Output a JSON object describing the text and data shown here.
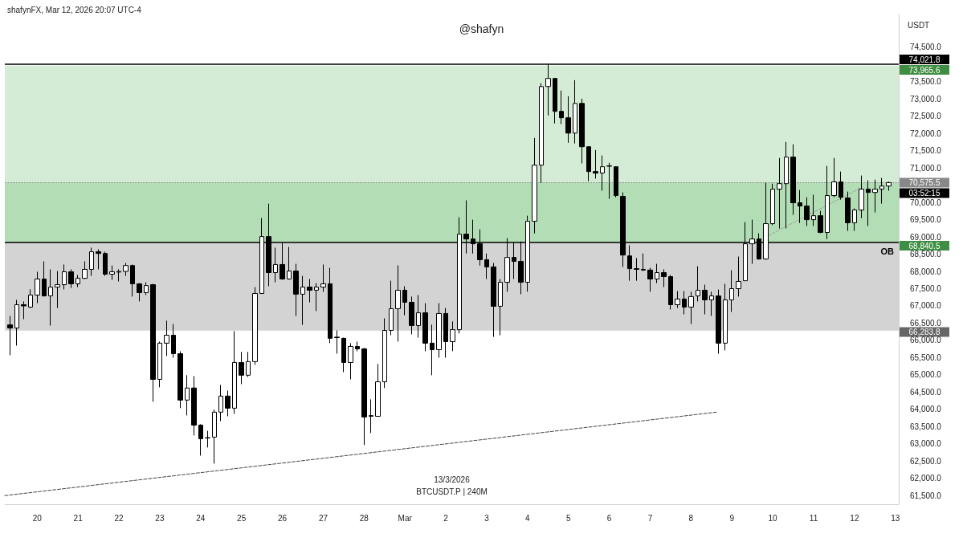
{
  "chart_data": {
    "type": "candlestick",
    "title": "@shafyn",
    "subtitle": "shafynFX, Mar 12, 2026 20:07 UTC-4",
    "ylabel": "USDT",
    "x": [
      "2026-02-19T08:00",
      "2026-02-19T12:00",
      "2026-02-19T16:00",
      "2026-02-19T20:00",
      "2026-02-20T00:00",
      "2026-02-20T04:00",
      "2026-02-20T08:00",
      "2026-02-20T12:00",
      "2026-02-20T16:00",
      "2026-02-20T20:00",
      "2026-02-21T00:00",
      "2026-02-21T04:00",
      "2026-02-21T08:00",
      "2026-02-21T12:00",
      "2026-02-21T16:00",
      "2026-02-21T20:00",
      "2026-02-22T00:00",
      "2026-02-22T04:00",
      "2026-02-22T08:00",
      "2026-02-22T12:00",
      "2026-02-22T16:00",
      "2026-02-22T20:00",
      "2026-02-23T00:00",
      "2026-02-23T04:00",
      "2026-02-23T08:00",
      "2026-02-23T12:00",
      "2026-02-23T16:00",
      "2026-02-23T20:00",
      "2026-02-24T00:00",
      "2026-02-24T04:00",
      "2026-02-24T08:00",
      "2026-02-24T12:00",
      "2026-02-24T16:00",
      "2026-02-24T20:00",
      "2026-02-25T00:00",
      "2026-02-25T04:00",
      "2026-02-25T08:00",
      "2026-02-25T12:00",
      "2026-02-25T16:00",
      "2026-02-25T20:00",
      "2026-02-26T00:00",
      "2026-02-26T04:00",
      "2026-02-26T08:00",
      "2026-02-26T12:00",
      "2026-02-26T16:00",
      "2026-02-26T20:00",
      "2026-02-27T00:00",
      "2026-02-27T04:00",
      "2026-02-27T08:00",
      "2026-02-27T12:00",
      "2026-02-27T16:00",
      "2026-02-27T20:00",
      "2026-02-28T00:00",
      "2026-02-28T04:00",
      "2026-02-28T08:00",
      "2026-02-28T12:00",
      "2026-02-28T16:00",
      "2026-02-28T20:00",
      "2026-03-01T00:00",
      "2026-03-01T04:00",
      "2026-03-01T08:00",
      "2026-03-01T12:00",
      "2026-03-01T16:00",
      "2026-03-01T20:00",
      "2026-03-02T00:00",
      "2026-03-02T04:00",
      "2026-03-02T08:00",
      "2026-03-02T12:00",
      "2026-03-02T16:00",
      "2026-03-02T20:00",
      "2026-03-03T00:00",
      "2026-03-03T04:00",
      "2026-03-03T08:00",
      "2026-03-03T12:00",
      "2026-03-03T16:00",
      "2026-03-03T20:00",
      "2026-03-04T00:00",
      "2026-03-04T04:00",
      "2026-03-04T08:00",
      "2026-03-04T12:00",
      "2026-03-04T16:00",
      "2026-03-04T20:00",
      "2026-03-05T00:00",
      "2026-03-05T04:00",
      "2026-03-05T08:00",
      "2026-03-05T12:00",
      "2026-03-05T16:00",
      "2026-03-05T20:00",
      "2026-03-06T00:00",
      "2026-03-06T04:00",
      "2026-03-06T08:00",
      "2026-03-06T12:00",
      "2026-03-06T16:00",
      "2026-03-06T20:00",
      "2026-03-07T00:00",
      "2026-03-07T04:00",
      "2026-03-07T08:00",
      "2026-03-07T12:00",
      "2026-03-07T16:00",
      "2026-03-07T20:00",
      "2026-03-08T00:00",
      "2026-03-08T04:00",
      "2026-03-08T08:00",
      "2026-03-08T12:00",
      "2026-03-08T16:00",
      "2026-03-08T20:00",
      "2026-03-09T00:00",
      "2026-03-09T04:00",
      "2026-03-09T08:00",
      "2026-03-09T12:00",
      "2026-03-09T16:00",
      "2026-03-09T20:00",
      "2026-03-10T00:00",
      "2026-03-10T04:00",
      "2026-03-10T08:00",
      "2026-03-10T12:00",
      "2026-03-10T16:00",
      "2026-03-10T20:00",
      "2026-03-11T00:00",
      "2026-03-11T04:00",
      "2026-03-11T08:00",
      "2026-03-11T12:00",
      "2026-03-11T16:00",
      "2026-03-11T20:00",
      "2026-03-12T00:00",
      "2026-03-12T04:00",
      "2026-03-12T08:00",
      "2026-03-12T12:00",
      "2026-03-12T16:00",
      "2026-03-12T20:00"
    ],
    "ohlc": [
      [
        66450,
        66710,
        65570,
        66360
      ],
      [
        66360,
        67175,
        65850,
        67035
      ],
      [
        67035,
        67130,
        66615,
        67000
      ],
      [
        66965,
        67480,
        66940,
        67315
      ],
      [
        67315,
        67990,
        67080,
        67780
      ],
      [
        67780,
        68290,
        67270,
        67290
      ],
      [
        67290,
        68060,
        66430,
        67545
      ],
      [
        67545,
        68010,
        66940,
        67615
      ],
      [
        67615,
        68200,
        67480,
        67990
      ],
      [
        67990,
        68060,
        67520,
        67640
      ],
      [
        67640,
        67895,
        67545,
        67800
      ],
      [
        67800,
        68290,
        67780,
        68060
      ],
      [
        68060,
        68690,
        67870,
        68570
      ],
      [
        68570,
        68640,
        68060,
        68520
      ],
      [
        68520,
        68570,
        67870,
        67920
      ],
      [
        67920,
        68170,
        67755,
        67990
      ],
      [
        67980,
        68060,
        67710,
        68000
      ],
      [
        68000,
        68245,
        67870,
        68170
      ],
      [
        68170,
        68200,
        67270,
        67640
      ],
      [
        67640,
        67660,
        67130,
        67385
      ],
      [
        67385,
        67685,
        67315,
        67590
      ],
      [
        67615,
        67640,
        64220,
        64870
      ],
      [
        64870,
        65965,
        64640,
        65920
      ],
      [
        65920,
        66570,
        65545,
        66150
      ],
      [
        66150,
        66475,
        65500,
        65615
      ],
      [
        65615,
        65685,
        64035,
        64270
      ],
      [
        64270,
        64990,
        63825,
        64620
      ],
      [
        64620,
        64965,
        63245,
        63545
      ],
      [
        63545,
        63570,
        62660,
        63150
      ],
      [
        63170,
        63380,
        62895,
        63180
      ],
      [
        63195,
        63990,
        62430,
        63920
      ],
      [
        63920,
        64710,
        63660,
        64385
      ],
      [
        64385,
        64545,
        63800,
        64035
      ],
      [
        64035,
        66270,
        63870,
        65360
      ],
      [
        65360,
        65665,
        64730,
        64990
      ],
      [
        64990,
        65665,
        64940,
        65385
      ],
      [
        65385,
        67545,
        65290,
        67360
      ],
      [
        67360,
        69545,
        67360,
        69010
      ],
      [
        69010,
        69965,
        67570,
        67965
      ],
      [
        67965,
        68690,
        67685,
        68200
      ],
      [
        68200,
        68830,
        67760,
        67780
      ],
      [
        67780,
        68710,
        67760,
        68010
      ],
      [
        68010,
        68220,
        66710,
        67340
      ],
      [
        67340,
        67870,
        66450,
        67545
      ],
      [
        67545,
        67780,
        67105,
        67455
      ],
      [
        67455,
        67660,
        66850,
        67545
      ],
      [
        67545,
        68200,
        67410,
        67640
      ],
      [
        67640,
        68105,
        65920,
        66060
      ],
      [
        66080,
        66290,
        65615,
        66095
      ],
      [
        66060,
        66080,
        65080,
        65360
      ],
      [
        65360,
        65920,
        64870,
        65825
      ],
      [
        65825,
        65965,
        65685,
        65755
      ],
      [
        65755,
        65780,
        62965,
        63780
      ],
      [
        63800,
        64290,
        63315,
        63820
      ],
      [
        63800,
        65315,
        63800,
        64800
      ],
      [
        64800,
        66640,
        64620,
        66290
      ],
      [
        66290,
        67730,
        66150,
        66920
      ],
      [
        66920,
        68175,
        65965,
        67455
      ],
      [
        67455,
        67570,
        66730,
        67105
      ],
      [
        67105,
        67270,
        66175,
        66430
      ],
      [
        66430,
        67315,
        66080,
        66800
      ],
      [
        66800,
        67080,
        65685,
        65920
      ],
      [
        65920,
        66455,
        64990,
        65730
      ],
      [
        65730,
        67080,
        65500,
        66780
      ],
      [
        66780,
        66940,
        65500,
        65965
      ],
      [
        65965,
        66550,
        65690,
        66310
      ],
      [
        66310,
        69570,
        66200,
        69080
      ],
      [
        69080,
        70060,
        68520,
        68940
      ],
      [
        68940,
        69500,
        68520,
        68800
      ],
      [
        68800,
        69220,
        68170,
        68340
      ],
      [
        68340,
        68520,
        67780,
        68130
      ],
      [
        68130,
        68245,
        66100,
        66990
      ],
      [
        66990,
        67780,
        66150,
        67685
      ],
      [
        67685,
        68965,
        67410,
        68405
      ],
      [
        68405,
        68850,
        67780,
        68290
      ],
      [
        68290,
        68870,
        67340,
        67685
      ],
      [
        67685,
        69615,
        67410,
        69455
      ],
      [
        69455,
        71870,
        69105,
        71080
      ],
      [
        71080,
        73455,
        70570,
        73360
      ],
      [
        73360,
        74020,
        72520,
        73595
      ],
      [
        73595,
        73595,
        72290,
        72640
      ],
      [
        72640,
        73245,
        72270,
        72455
      ],
      [
        72455,
        73080,
        71730,
        72010
      ],
      [
        72010,
        73545,
        71710,
        72870
      ],
      [
        72870,
        73010,
        71130,
        71615
      ],
      [
        71615,
        71615,
        70615,
        70895
      ],
      [
        70895,
        71520,
        70690,
        70850
      ],
      [
        70850,
        71360,
        70340,
        71035
      ],
      [
        71050,
        71150,
        70105,
        71060
      ],
      [
        71035,
        71035,
        70150,
        70200
      ],
      [
        70175,
        70290,
        68130,
        68475
      ],
      [
        68450,
        68755,
        67730,
        68080
      ],
      [
        68080,
        68385,
        67730,
        68060
      ],
      [
        68060,
        68520,
        68010,
        68040
      ],
      [
        68040,
        68105,
        67410,
        67780
      ],
      [
        67780,
        68220,
        67660,
        67965
      ],
      [
        67965,
        68060,
        67545,
        67850
      ],
      [
        67850,
        67895,
        66895,
        67035
      ],
      [
        67035,
        67430,
        66940,
        67200
      ],
      [
        67200,
        67430,
        66755,
        66965
      ],
      [
        66965,
        67410,
        66475,
        67270
      ],
      [
        67290,
        68150,
        67130,
        67455
      ],
      [
        67455,
        67615,
        66755,
        67175
      ],
      [
        67175,
        67410,
        66710,
        67290
      ],
      [
        67290,
        67475,
        65615,
        65920
      ],
      [
        65920,
        67640,
        65710,
        67175
      ],
      [
        67175,
        68035,
        66825,
        67500
      ],
      [
        67500,
        68430,
        67270,
        67710
      ],
      [
        67730,
        69430,
        67730,
        68800
      ],
      [
        68800,
        69500,
        68220,
        68940
      ],
      [
        68940,
        69105,
        68340,
        68360
      ],
      [
        68360,
        70570,
        68340,
        69385
      ],
      [
        69385,
        70545,
        69340,
        70385
      ],
      [
        70385,
        71290,
        69245,
        70545
      ],
      [
        70545,
        71755,
        69245,
        71315
      ],
      [
        71315,
        71685,
        69640,
        69990
      ],
      [
        69990,
        70360,
        69405,
        69895
      ],
      [
        69895,
        70150,
        69315,
        69500
      ],
      [
        69500,
        70220,
        69315,
        69615
      ],
      [
        69615,
        69755,
        69105,
        69130
      ],
      [
        69130,
        71060,
        68940,
        70200
      ],
      [
        70200,
        71290,
        70150,
        70595
      ],
      [
        70595,
        70895,
        70080,
        70150
      ],
      [
        70130,
        70315,
        69175,
        69410
      ],
      [
        69410,
        69825,
        69175,
        69780
      ],
      [
        69780,
        70780,
        69545,
        70385
      ],
      [
        70385,
        70640,
        69315,
        70290
      ],
      [
        70290,
        70660,
        69710,
        70385
      ],
      [
        70385,
        70710,
        69965,
        70475
      ],
      [
        70475,
        70600,
        70340,
        70575.5
      ]
    ],
    "series": [
      {
        "type": "line",
        "x": [
          "2026-02-19T05:00",
          "2026-03-08T15:00"
        ],
        "values": [
          61500,
          63920
        ],
        "color": "#444444",
        "line_style": "dashed",
        "marker": "none"
      },
      {
        "type": "line",
        "x": [
          "2026-03-09T16:00",
          "2026-03-12T04:00"
        ],
        "values": [
          68900,
          70430
        ],
        "color": "#9aa89b",
        "line_style": "dashed",
        "marker": "none"
      }
    ],
    "bands": [
      {
        "axis": "y",
        "from": 68840.5,
        "to": 73965.6,
        "color": "#d4ecd5",
        "label": "73,965.6"
      },
      {
        "axis": "y",
        "from": 70575.5,
        "to": 68840.5,
        "color": "#b2ddb5",
        "label": "68,840.5"
      },
      {
        "axis": "y",
        "from": 68840.5,
        "to": 66283.8,
        "color": "#d3d3d3",
        "label": "66,283.8"
      }
    ],
    "ref_lines": [
      {
        "axis": "y",
        "value": 74021.8,
        "label": "74,021.8",
        "color": "#000000",
        "line_style": "solid"
      },
      {
        "axis": "y",
        "value": 70575.5,
        "label": "70,575.5",
        "color": "#888888",
        "line_style": "dotted"
      },
      {
        "axis": "y",
        "value": 68840.5,
        "label": "OB",
        "color": "#000000",
        "line_style": "solid"
      }
    ],
    "annotations": [
      "03:52:15",
      "13/3/2026",
      "BTCUSDT.P | 240M"
    ],
    "xlim": [
      "2026-02-19T05:00",
      "2026-03-13T02:00"
    ],
    "xticks": [
      {
        "value": "2026-02-20",
        "label": "20"
      },
      {
        "value": "2026-02-21",
        "label": "21"
      },
      {
        "value": "2026-02-22",
        "label": "22"
      },
      {
        "value": "2026-02-23",
        "label": "23"
      },
      {
        "value": "2026-02-24",
        "label": "24"
      },
      {
        "value": "2026-02-25",
        "label": "25"
      },
      {
        "value": "2026-02-26",
        "label": "26"
      },
      {
        "value": "2026-02-27",
        "label": "27"
      },
      {
        "value": "2026-02-28",
        "label": "28"
      },
      {
        "value": "2026-03-01",
        "label": "Mar"
      },
      {
        "value": "2026-03-02",
        "label": "2"
      },
      {
        "value": "2026-03-03",
        "label": "3"
      },
      {
        "value": "2026-03-04",
        "label": "4"
      },
      {
        "value": "2026-03-05",
        "label": "5"
      },
      {
        "value": "2026-03-06",
        "label": "6"
      },
      {
        "value": "2026-03-07",
        "label": "7"
      },
      {
        "value": "2026-03-08",
        "label": "8"
      },
      {
        "value": "2026-03-09",
        "label": "9"
      },
      {
        "value": "2026-03-10",
        "label": "10"
      },
      {
        "value": "2026-03-11",
        "label": "11"
      },
      {
        "value": "2026-03-12",
        "label": "12"
      },
      {
        "value": "2026-03-13",
        "label": "13"
      }
    ],
    "ylim": [
      61250,
      75450
    ],
    "yticks": [
      {
        "value": 61500,
        "label": "61,500.0"
      },
      {
        "value": 62000,
        "label": "62,000.0"
      },
      {
        "value": 62500,
        "label": "62,500.0"
      },
      {
        "value": 63000,
        "label": "63,000.0"
      },
      {
        "value": 63500,
        "label": "63,500.0"
      },
      {
        "value": 64000,
        "label": "64,000.0"
      },
      {
        "value": 64500,
        "label": "64,500.0"
      },
      {
        "value": 65000,
        "label": "65,000.0"
      },
      {
        "value": 65500,
        "label": "65,500.0"
      },
      {
        "value": 66000,
        "label": "66,000.0"
      },
      {
        "value": 66500,
        "label": "66,500.0"
      },
      {
        "value": 67000,
        "label": "67,000.0"
      },
      {
        "value": 67500,
        "label": "67,500.0"
      },
      {
        "value": 68000,
        "label": "68,000.0"
      },
      {
        "value": 68500,
        "label": "68,500.0"
      },
      {
        "value": 69000,
        "label": "69,000.0"
      },
      {
        "value": 69500,
        "label": "69,500.0"
      },
      {
        "value": 70000,
        "label": "70,000.0"
      },
      {
        "value": 71000,
        "label": "71,000.0"
      },
      {
        "value": 71500,
        "label": "71,500.0"
      },
      {
        "value": 72000,
        "label": "72,000.0"
      },
      {
        "value": 72500,
        "label": "72,500.0"
      },
      {
        "value": 73000,
        "label": "73,000.0"
      },
      {
        "value": 73500,
        "label": "73,500.0"
      },
      {
        "value": 74500,
        "label": "74,500.0"
      }
    ]
  }
}
